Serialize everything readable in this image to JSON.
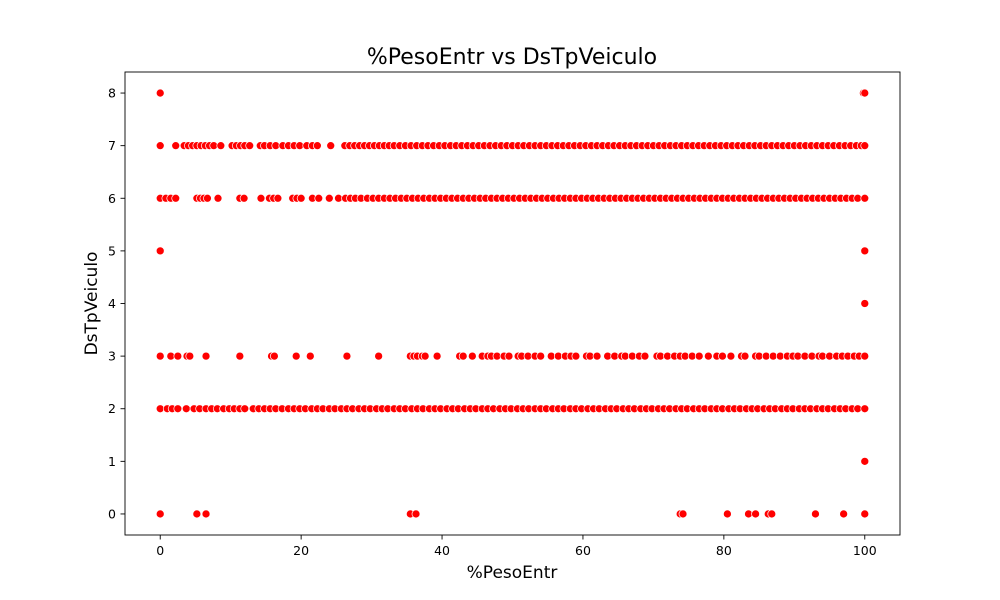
{
  "chart_data": {
    "type": "scatter",
    "title": "%PesoEntr vs DsTpVeiculo",
    "xlabel": "%PesoEntr",
    "ylabel": "DsTpVeiculo",
    "xlim": [
      -5,
      105
    ],
    "ylim": [
      -0.4,
      8.4
    ],
    "xticks": [
      0,
      20,
      40,
      60,
      80,
      100
    ],
    "yticks": [
      0,
      1,
      2,
      3,
      4,
      5,
      6,
      7,
      8
    ],
    "grid": false,
    "legend": "none",
    "marker_color": "#ff0000",
    "series": [
      {
        "points": [
          [
            0,
            8
          ],
          [
            99.8,
            8
          ],
          [
            100,
            8
          ],
          [
            0,
            5
          ],
          [
            100,
            5
          ],
          [
            100,
            4
          ],
          [
            100,
            1
          ],
          [
            0,
            0
          ],
          [
            5.2,
            0
          ],
          [
            6.5,
            0
          ],
          [
            35.5,
            0
          ],
          [
            36.3,
            0
          ],
          [
            73.8,
            0
          ],
          [
            74.2,
            0
          ],
          [
            80.5,
            0
          ],
          [
            83.5,
            0
          ],
          [
            84.5,
            0
          ],
          [
            86.3,
            0
          ],
          [
            86.8,
            0
          ],
          [
            93,
            0
          ],
          [
            97,
            0
          ],
          [
            100,
            0
          ],
          [
            0,
            3
          ],
          [
            1.5,
            3
          ],
          [
            2.5,
            3
          ],
          [
            3.8,
            3
          ],
          [
            4.2,
            3
          ],
          [
            6.5,
            3
          ],
          [
            11.3,
            3
          ],
          [
            15.8,
            3
          ],
          [
            16.2,
            3
          ],
          [
            19.3,
            3
          ],
          [
            21.3,
            3
          ],
          [
            26.5,
            3
          ],
          [
            31,
            3
          ],
          [
            35.5,
            3
          ],
          [
            36,
            3
          ],
          [
            36.5,
            3
          ],
          [
            37.2,
            3
          ],
          [
            37.6,
            3
          ],
          [
            39.3,
            3
          ],
          [
            42.5,
            3
          ],
          [
            43,
            3
          ],
          [
            44.3,
            3
          ],
          [
            45.7,
            3
          ],
          [
            46.5,
            3
          ],
          [
            47,
            3
          ],
          [
            47.8,
            3
          ],
          [
            48.8,
            3
          ],
          [
            49.5,
            3
          ],
          [
            50.8,
            3
          ],
          [
            51.3,
            3
          ],
          [
            52.2,
            3
          ],
          [
            53.2,
            3
          ],
          [
            54,
            3
          ],
          [
            55.5,
            3
          ],
          [
            56.5,
            3
          ],
          [
            57.5,
            3
          ],
          [
            58.3,
            3
          ],
          [
            59,
            3
          ],
          [
            60.5,
            3
          ],
          [
            61,
            3
          ],
          [
            62,
            3
          ],
          [
            63.5,
            3
          ],
          [
            64.5,
            3
          ],
          [
            65.5,
            3
          ],
          [
            66,
            3
          ],
          [
            67,
            3
          ],
          [
            68,
            3
          ],
          [
            68.8,
            3
          ],
          [
            70.5,
            3
          ],
          [
            71,
            3
          ],
          [
            72,
            3
          ],
          [
            73,
            3
          ],
          [
            73.8,
            3
          ],
          [
            74.5,
            3
          ],
          [
            75.5,
            3
          ],
          [
            76.5,
            3
          ],
          [
            77.8,
            3
          ],
          [
            79,
            3
          ],
          [
            79.8,
            3
          ],
          [
            81,
            3
          ],
          [
            82.5,
            3
          ],
          [
            83,
            3
          ],
          [
            84.5,
            3
          ],
          [
            85,
            3
          ],
          [
            86,
            3
          ],
          [
            87,
            3
          ],
          [
            88,
            3
          ],
          [
            89,
            3
          ],
          [
            89.8,
            3
          ],
          [
            90.5,
            3
          ],
          [
            91.5,
            3
          ],
          [
            92.5,
            3
          ],
          [
            93.5,
            3
          ],
          [
            94,
            3
          ],
          [
            95,
            3
          ],
          [
            96,
            3
          ],
          [
            96.8,
            3
          ],
          [
            97.6,
            3
          ],
          [
            98.5,
            3
          ],
          [
            99.2,
            3
          ],
          [
            100,
            3
          ]
        ],
        "dense_rows": [
          {
            "y": 2,
            "x": [
              0,
              1,
              1.7,
              2.5,
              3.7,
              4.8,
              5.6,
              6.5,
              7.3,
              8.1,
              9,
              9.8,
              10.5,
              11.3,
              12,
              13.2,
              14,
              14.8,
              15.6,
              16.4,
              17.3,
              18.2,
              19,
              19.8,
              20.6,
              21.5,
              22.3,
              23.1,
              24,
              24.8,
              25.7,
              26.5,
              27.3,
              28.2,
              29,
              29.8,
              30.7,
              31.5,
              32.3,
              33.2,
              34,
              34.8,
              35.7,
              36.5,
              37.3,
              38.2,
              39,
              39.8,
              40.7,
              41.5,
              42.3,
              43.2,
              44,
              44.8,
              45.7,
              46.5,
              47.3,
              48.2,
              49,
              49.8,
              50.7,
              51.5,
              52.3,
              53.2,
              54,
              54.8,
              55.7,
              56.5,
              57.3,
              58.2,
              59,
              59.8,
              60.7,
              61.5,
              62.3,
              63.2,
              64,
              64.8,
              65.7,
              66.5,
              67.3,
              68.2,
              69,
              69.8,
              70.7,
              71.5,
              72.3,
              73.2,
              74,
              74.8,
              75.7,
              76.5,
              77.3,
              78.2,
              79,
              79.8,
              80.7,
              81.5,
              82.3,
              83.2,
              84,
              84.8,
              85.7,
              86.5,
              87.3,
              88.2,
              89,
              89.8,
              90.7,
              91.5,
              92.3,
              93.2,
              94,
              94.8,
              95.7,
              96.5,
              97.3,
              98.2,
              99,
              100
            ]
          },
          {
            "y": 6,
            "x": [
              0,
              0.8,
              1.5,
              2.2,
              5.2,
              5.7,
              6.2,
              6.7,
              8.2,
              11.3,
              11.9,
              14.3,
              15.5,
              16.1,
              16.7,
              18.8,
              19.4,
              20,
              21.6,
              22.5,
              24,
              25.3,
              26.3,
              27,
              27.7,
              28.5,
              29.4,
              30.2,
              31,
              31.8,
              32.6,
              33.4,
              34.2,
              35,
              35.8,
              36.6,
              37.4,
              38.2,
              39,
              39.8,
              40.6,
              41.4,
              42.2,
              43,
              43.8,
              44.6,
              45.4,
              46.2,
              47,
              47.8,
              48.6,
              49.4,
              50.2,
              51,
              51.8,
              52.6,
              53.4,
              54.2,
              55,
              55.8,
              56.6,
              57.4,
              58.2,
              59,
              59.8,
              60.6,
              61.4,
              62.2,
              63,
              63.8,
              64.6,
              65.4,
              66.2,
              67,
              67.8,
              68.6,
              69.4,
              70.2,
              71,
              71.8,
              72.6,
              73.4,
              74.2,
              75,
              75.8,
              76.6,
              77.4,
              78.2,
              79,
              79.8,
              80.6,
              81.4,
              82.2,
              83,
              83.8,
              84.6,
              85.4,
              86.2,
              87,
              87.8,
              88.6,
              89.4,
              90.2,
              91,
              91.8,
              92.6,
              93.4,
              94.2,
              95,
              95.8,
              96.6,
              97.4,
              98.2,
              99,
              100
            ]
          },
          {
            "y": 7,
            "x": [
              0,
              2.2,
              3.4,
              4,
              4.6,
              5.2,
              5.8,
              6.4,
              7,
              7.6,
              8.6,
              10.2,
              10.8,
              11.4,
              12,
              12.7,
              14.2,
              14.8,
              15.6,
              16.4,
              17.4,
              18.2,
              19,
              19.8,
              20.8,
              21.6,
              22.3,
              24.2,
              26.2,
              26.9,
              27.6,
              28.3,
              29,
              29.7,
              30.4,
              31.1,
              31.8,
              32.5,
              33.2,
              34,
              34.8,
              35.6,
              36.4,
              37.2,
              38,
              38.8,
              39.6,
              40.4,
              41.2,
              42,
              42.8,
              43.6,
              44.4,
              45.2,
              46,
              46.8,
              47.6,
              48.4,
              49.2,
              50,
              50.8,
              51.6,
              52.4,
              53.2,
              54,
              54.8,
              55.6,
              56.4,
              57.2,
              58,
              58.8,
              59.6,
              60.4,
              61.2,
              62,
              62.8,
              63.6,
              64.4,
              65.2,
              66,
              66.8,
              67.6,
              68.4,
              69.2,
              70,
              70.8,
              71.6,
              72.4,
              73.2,
              74,
              74.8,
              75.6,
              76.4,
              77.2,
              78,
              78.8,
              79.6,
              80.4,
              81.2,
              82,
              82.8,
              83.6,
              84.4,
              85.2,
              86,
              86.8,
              87.6,
              88.4,
              89.2,
              90,
              90.8,
              91.6,
              92.4,
              93.2,
              94,
              94.8,
              95.6,
              96.4,
              97.2,
              98,
              98.8,
              99.5,
              100
            ]
          }
        ]
      }
    ]
  }
}
